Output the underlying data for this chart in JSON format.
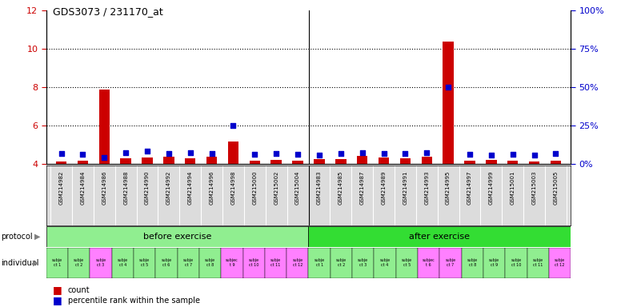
{
  "title": "GDS3073 / 231170_at",
  "samples": [
    "GSM214982",
    "GSM214984",
    "GSM214986",
    "GSM214988",
    "GSM214990",
    "GSM214992",
    "GSM214994",
    "GSM214996",
    "GSM214998",
    "GSM215000",
    "GSM215002",
    "GSM215004",
    "GSM214983",
    "GSM214985",
    "GSM214987",
    "GSM214989",
    "GSM214991",
    "GSM214993",
    "GSM214995",
    "GSM214997",
    "GSM214999",
    "GSM215001",
    "GSM215003",
    "GSM215005"
  ],
  "red_values": [
    4.15,
    4.18,
    7.9,
    4.3,
    4.35,
    4.4,
    4.32,
    4.38,
    5.2,
    4.2,
    4.22,
    4.18,
    4.25,
    4.28,
    4.45,
    4.35,
    4.3,
    4.4,
    10.4,
    4.18,
    4.22,
    4.2,
    4.15,
    4.18
  ],
  "blue_values": [
    4.55,
    4.52,
    4.35,
    4.62,
    4.68,
    4.55,
    4.6,
    4.55,
    6.0,
    4.5,
    4.55,
    4.52,
    4.48,
    4.55,
    4.6,
    4.58,
    4.55,
    4.62,
    8.0,
    4.5,
    4.48,
    4.52,
    4.48,
    4.55
  ],
  "ylim_left": [
    4,
    12
  ],
  "ylim_right": [
    0,
    100
  ],
  "yticks_left": [
    4,
    6,
    8,
    10,
    12
  ],
  "yticks_right": [
    0,
    25,
    50,
    75,
    100
  ],
  "red_color": "#CC0000",
  "blue_color": "#0000CC",
  "bg_color": "#DCDCDC",
  "plot_bg": "#FFFFFF",
  "before_color": "#90EE90",
  "after_color": "#33DD33",
  "indiv_colors_before": [
    "#90EE90",
    "#90EE90",
    "#FF80FF",
    "#90EE90",
    "#90EE90",
    "#90EE90",
    "#90EE90",
    "#90EE90",
    "#FF80FF",
    "#FF80FF",
    "#FF80FF",
    "#FF80FF"
  ],
  "indiv_colors_after": [
    "#90EE90",
    "#90EE90",
    "#90EE90",
    "#90EE90",
    "#90EE90",
    "#FF80FF",
    "#FF80FF",
    "#90EE90",
    "#90EE90",
    "#90EE90",
    "#90EE90",
    "#FF80FF"
  ],
  "indiv_labels_before": [
    "subje\nct 1",
    "subje\nct 2",
    "subje\nct 3",
    "subje\nct 4",
    "subje\nct 5",
    "subje\nct 6",
    "subje\nct 7",
    "subje\nct 8",
    "subjec\nt 9",
    "subje\nct 10",
    "subje\nct 11",
    "subje\nct 12"
  ],
  "indiv_labels_after": [
    "subje\nct 1",
    "subje\nct 2",
    "subje\nct 3",
    "subje\nct 4",
    "subje\nct 5",
    "subjec\nt 6",
    "subje\nct 7",
    "subje\nct 8",
    "subje\nct 9",
    "subje\nct 10",
    "subje\nct 11",
    "subje\nct 12"
  ],
  "legend_count": "count",
  "legend_percentile": "percentile rank within the sample"
}
